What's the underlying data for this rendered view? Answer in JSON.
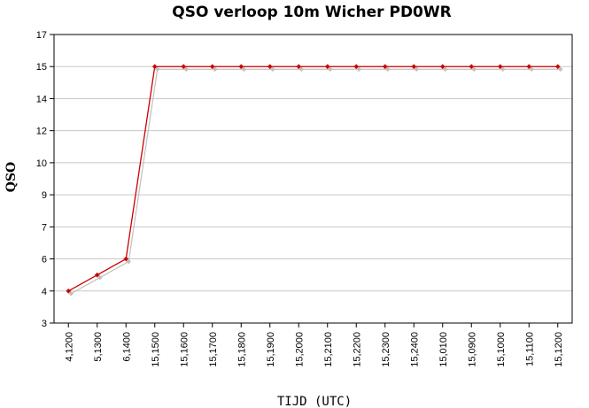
{
  "chart_data": {
    "type": "line",
    "title": "QSO verloop 10m Wicher PD0WR",
    "xlabel": "TIJD (UTC)",
    "ylabel": "QSO",
    "y_tick_labels": [
      "3",
      "4",
      "6",
      "7",
      "9",
      "10",
      "12",
      "14",
      "15",
      "17"
    ],
    "ylim": [
      3,
      17
    ],
    "categories": [
      "4,1200",
      "5,1300",
      "6,1400",
      "15,1500",
      "15,1600",
      "15,1700",
      "15,1800",
      "15,1900",
      "15,2000",
      "15,2100",
      "15,2200",
      "15,2300",
      "15,2400",
      "15,0100",
      "15,0900",
      "15,1000",
      "15,1100",
      "15,1200"
    ],
    "series": [
      {
        "values": [
          4,
          5,
          6,
          15,
          15,
          15,
          15,
          15,
          15,
          15,
          15,
          15,
          15,
          15,
          15,
          15,
          15,
          15
        ]
      }
    ],
    "grid": true,
    "legend": "none"
  },
  "colors": {
    "line": "#cc0000",
    "shadow": "#c0c0c0",
    "grid": "#c8c8c8",
    "axis": "#000000"
  }
}
